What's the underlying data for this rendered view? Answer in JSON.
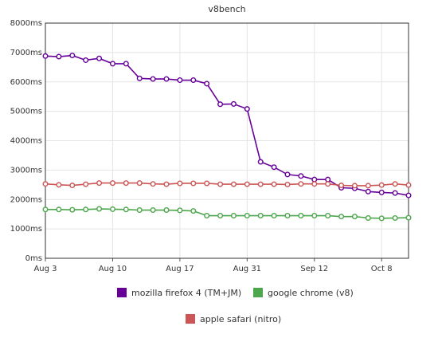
{
  "chart_data": {
    "type": "line",
    "title": "v8bench",
    "categories": [
      "Aug 3",
      null,
      null,
      null,
      null,
      "Aug 10",
      null,
      null,
      null,
      null,
      "Aug 17",
      null,
      null,
      null,
      null,
      "Aug 31",
      null,
      null,
      null,
      null,
      "Sep 12",
      null,
      null,
      null,
      null,
      "Oct 8",
      null,
      null
    ],
    "series": [
      {
        "name": "mozilla firefox 4 (TM+JM)",
        "color": "#660099",
        "values": [
          6880,
          6860,
          6900,
          6740,
          6800,
          6620,
          6620,
          6120,
          6100,
          6100,
          6060,
          6060,
          5940,
          5240,
          5250,
          5080,
          3280,
          3100,
          2850,
          2800,
          2680,
          2680,
          2400,
          2380,
          2270,
          2240,
          2220,
          2140
        ]
      },
      {
        "name": "google chrome (v8)",
        "color": "#4ca64c",
        "values": [
          1660,
          1660,
          1650,
          1660,
          1680,
          1670,
          1660,
          1640,
          1640,
          1640,
          1630,
          1610,
          1450,
          1450,
          1450,
          1450,
          1450,
          1450,
          1450,
          1450,
          1450,
          1450,
          1420,
          1420,
          1370,
          1360,
          1370,
          1380
        ]
      },
      {
        "name": "apple safari (nitro)",
        "color": "#cc5555",
        "values": [
          2530,
          2500,
          2480,
          2520,
          2560,
          2560,
          2560,
          2560,
          2530,
          2520,
          2550,
          2550,
          2550,
          2520,
          2520,
          2520,
          2520,
          2520,
          2510,
          2530,
          2530,
          2530,
          2480,
          2470,
          2470,
          2490,
          2530,
          2490
        ]
      }
    ],
    "ylim": [
      0,
      8000
    ],
    "yticks": [
      {
        "value": 0,
        "label": "0ms"
      },
      {
        "value": 1000,
        "label": "1000ms"
      },
      {
        "value": 2000,
        "label": "2000ms"
      },
      {
        "value": 3000,
        "label": "3000ms"
      },
      {
        "value": 4000,
        "label": "4000ms"
      },
      {
        "value": 5000,
        "label": "5000ms"
      },
      {
        "value": 6000,
        "label": "6000ms"
      },
      {
        "value": 7000,
        "label": "7000ms"
      },
      {
        "value": 8000,
        "label": "8000ms"
      }
    ],
    "grid": true
  }
}
